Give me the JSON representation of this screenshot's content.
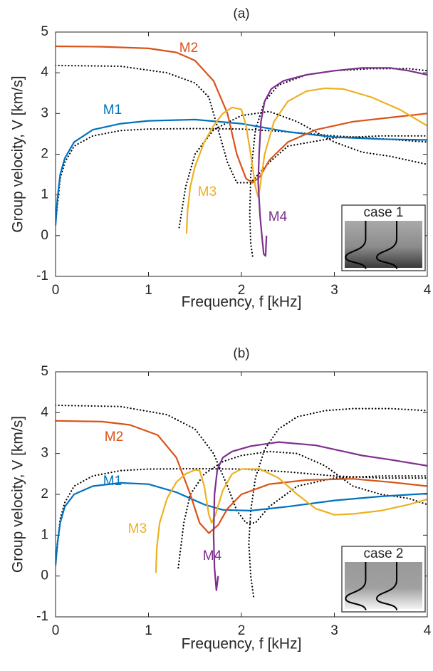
{
  "chart_data": [
    {
      "type": "line",
      "title": "(a)",
      "xlabel": "Frequency, f [kHz]",
      "ylabel": "Group velocity, V [km/s]",
      "xlim": [
        0,
        4
      ],
      "ylim": [
        -1,
        5
      ],
      "xticks": [
        0,
        1,
        2,
        3,
        4
      ],
      "yticks": [
        -1,
        0,
        1,
        2,
        3,
        4,
        5
      ],
      "inset_label": "case 1",
      "series": [
        {
          "color": "#000000",
          "dash": "dotted",
          "x": [
            0,
            0.05,
            0.1,
            0.2,
            0.4,
            0.7,
            1,
            1.5,
            2,
            2.5,
            3,
            3.5,
            4
          ],
          "values": [
            0.3,
            1.4,
            1.8,
            2.2,
            2.45,
            2.58,
            2.62,
            2.63,
            2.62,
            2.55,
            2.45,
            2.38,
            2.3
          ]
        },
        {
          "color": "#000000",
          "dash": "dotted",
          "x": [
            0,
            0.7,
            1.2,
            1.5,
            1.65,
            1.75,
            1.85,
            1.95,
            2.1,
            2.3,
            2.5,
            3,
            3.5,
            4
          ],
          "values": [
            4.18,
            4.16,
            4.0,
            3.75,
            3.4,
            2.6,
            1.8,
            1.3,
            1.3,
            1.8,
            2.2,
            2.4,
            2.45,
            2.45
          ]
        },
        {
          "color": "#000000",
          "dash": "dotted",
          "x": [
            1.33,
            1.4,
            1.5,
            1.7,
            2.0,
            2.3,
            2.6,
            3.0,
            3.3,
            3.6,
            4
          ],
          "values": [
            0.2,
            1.2,
            2.0,
            2.6,
            2.95,
            3.05,
            2.8,
            2.3,
            2.05,
            1.95,
            1.75
          ]
        },
        {
          "color": "#000000",
          "dash": "dotted",
          "x": [
            2.12,
            2.1,
            2.09,
            2.1,
            2.15,
            2.25,
            2.4,
            2.7,
            3.0,
            3.4,
            3.8,
            4
          ],
          "values": [
            -0.5,
            -0.2,
            0.5,
            1.5,
            2.6,
            3.3,
            3.7,
            3.95,
            4.05,
            4.1,
            4.1,
            4.05
          ]
        },
        {
          "name": "M1",
          "color": "#0072BD",
          "x": [
            0,
            0.02,
            0.05,
            0.1,
            0.2,
            0.4,
            0.7,
            1,
            1.5,
            2,
            2.5,
            3,
            3.5,
            4
          ],
          "values": [
            0.25,
            0.9,
            1.5,
            1.9,
            2.3,
            2.6,
            2.75,
            2.82,
            2.85,
            2.75,
            2.55,
            2.42,
            2.37,
            2.35
          ]
        },
        {
          "name": "M2",
          "color": "#D95319",
          "x": [
            0,
            0.5,
            1,
            1.3,
            1.5,
            1.7,
            1.85,
            1.95,
            2.05,
            2.12,
            2.2,
            2.3,
            2.5,
            2.8,
            3.2,
            3.6,
            4
          ],
          "values": [
            4.65,
            4.64,
            4.6,
            4.5,
            4.3,
            3.8,
            3.0,
            2.0,
            1.4,
            1.3,
            1.45,
            1.85,
            2.3,
            2.6,
            2.8,
            2.9,
            3.0
          ]
        },
        {
          "name": "M3",
          "color": "#EDB120",
          "x": [
            1.41,
            1.42,
            1.45,
            1.5,
            1.6,
            1.7,
            1.8,
            1.9,
            2.0,
            2.05,
            2.1,
            2.15,
            2.18,
            2.2,
            2.25,
            2.35,
            2.5,
            2.7,
            2.9,
            3.1,
            3.4,
            3.7,
            4
          ],
          "values": [
            0.05,
            0.6,
            1.2,
            1.7,
            2.3,
            2.7,
            3.0,
            3.15,
            3.1,
            2.7,
            2.0,
            1.2,
            0.95,
            1.2,
            2.0,
            2.8,
            3.3,
            3.55,
            3.62,
            3.6,
            3.4,
            3.1,
            2.7
          ]
        },
        {
          "name": "M4",
          "color": "#7E2F8E",
          "x": [
            2.27,
            2.26,
            2.24,
            2.22,
            2.2,
            2.19,
            2.18,
            2.19,
            2.21,
            2.25,
            2.32,
            2.45,
            2.7,
            3.0,
            3.3,
            3.6,
            3.8,
            4
          ],
          "values": [
            0,
            -0.5,
            -0.45,
            0,
            0.5,
            0.9,
            1.3,
            2.0,
            2.8,
            3.3,
            3.6,
            3.8,
            3.95,
            4.05,
            4.12,
            4.12,
            4.05,
            3.95
          ]
        }
      ]
    },
    {
      "type": "line",
      "title": "(b)",
      "xlabel": "Frequency, f [kHz]",
      "ylabel": "Group velocity, V [km/s]",
      "xlim": [
        0,
        4
      ],
      "ylim": [
        -1,
        5
      ],
      "xticks": [
        0,
        1,
        2,
        3,
        4
      ],
      "yticks": [
        -1,
        0,
        1,
        2,
        3,
        4,
        5
      ],
      "inset_label": "case 2",
      "series": [
        {
          "color": "#000000",
          "dash": "dotted",
          "x": [
            0,
            0.05,
            0.1,
            0.2,
            0.4,
            0.7,
            1,
            1.5,
            2,
            2.5,
            3,
            3.5,
            4
          ],
          "values": [
            0.3,
            1.4,
            1.8,
            2.2,
            2.45,
            2.58,
            2.62,
            2.63,
            2.62,
            2.55,
            2.45,
            2.4,
            2.4
          ]
        },
        {
          "color": "#000000",
          "dash": "dotted",
          "x": [
            0,
            0.7,
            1.2,
            1.5,
            1.7,
            1.85,
            1.95,
            2.05,
            2.15,
            2.3,
            2.6,
            3,
            3.5,
            4
          ],
          "values": [
            4.18,
            4.15,
            3.95,
            3.6,
            3.0,
            2.2,
            1.6,
            1.3,
            1.3,
            1.7,
            2.2,
            2.4,
            2.45,
            2.45
          ]
        },
        {
          "color": "#000000",
          "dash": "dotted",
          "x": [
            1.32,
            1.38,
            1.45,
            1.6,
            1.8,
            2.0,
            2.3,
            2.6,
            2.9,
            3.2,
            3.5,
            3.8,
            4
          ],
          "values": [
            0.2,
            1.3,
            2.0,
            2.5,
            2.8,
            2.95,
            3.05,
            3.0,
            2.7,
            2.2,
            2.0,
            1.9,
            1.75
          ]
        },
        {
          "color": "#000000",
          "dash": "dotted",
          "x": [
            2.13,
            2.1,
            2.08,
            2.1,
            2.15,
            2.25,
            2.4,
            2.6,
            2.9,
            3.2,
            3.6,
            4
          ],
          "values": [
            -0.5,
            0,
            0.8,
            1.6,
            2.4,
            3.1,
            3.6,
            3.9,
            4.05,
            4.1,
            4.1,
            4.05
          ]
        },
        {
          "name": "M1",
          "color": "#0072BD",
          "x": [
            0,
            0.02,
            0.05,
            0.1,
            0.2,
            0.4,
            0.7,
            1,
            1.3,
            1.6,
            1.8,
            2.1,
            2.5,
            3,
            3.5,
            4
          ],
          "values": [
            0.25,
            0.8,
            1.3,
            1.7,
            2.0,
            2.2,
            2.28,
            2.25,
            2.05,
            1.75,
            1.62,
            1.6,
            1.7,
            1.85,
            1.95,
            2.02
          ]
        },
        {
          "name": "M2",
          "color": "#D95319",
          "x": [
            0,
            0.5,
            0.8,
            1.1,
            1.3,
            1.45,
            1.55,
            1.65,
            1.75,
            1.85,
            2.0,
            2.3,
            2.7,
            3.2,
            3.6,
            4
          ],
          "values": [
            3.8,
            3.78,
            3.7,
            3.45,
            2.9,
            2.0,
            1.3,
            1.05,
            1.25,
            1.65,
            2.0,
            2.25,
            2.35,
            2.38,
            2.3,
            2.2
          ]
        },
        {
          "name": "M3",
          "color": "#EDB120",
          "x": [
            1.08,
            1.09,
            1.12,
            1.2,
            1.3,
            1.4,
            1.5,
            1.55,
            1.6,
            1.65,
            1.68,
            1.72,
            1.8,
            1.9,
            2.0,
            2.2,
            2.4,
            2.6,
            2.8,
            3.0,
            3.2,
            3.5,
            3.8,
            4
          ],
          "values": [
            0.08,
            0.7,
            1.3,
            1.9,
            2.3,
            2.5,
            2.6,
            2.58,
            2.2,
            1.5,
            1.3,
            1.5,
            2.1,
            2.5,
            2.62,
            2.62,
            2.4,
            2.0,
            1.65,
            1.5,
            1.52,
            1.6,
            1.75,
            1.88
          ]
        },
        {
          "name": "M4",
          "color": "#7E2F8E",
          "x": [
            1.75,
            1.73,
            1.71,
            1.7,
            1.71,
            1.74,
            1.8,
            1.9,
            2.1,
            2.4,
            2.8,
            3.0,
            3.3,
            3.6,
            4
          ],
          "values": [
            0,
            -0.35,
            0.2,
            1.0,
            2.0,
            2.6,
            2.9,
            3.05,
            3.18,
            3.28,
            3.2,
            3.1,
            2.95,
            2.85,
            2.7
          ]
        }
      ]
    }
  ]
}
